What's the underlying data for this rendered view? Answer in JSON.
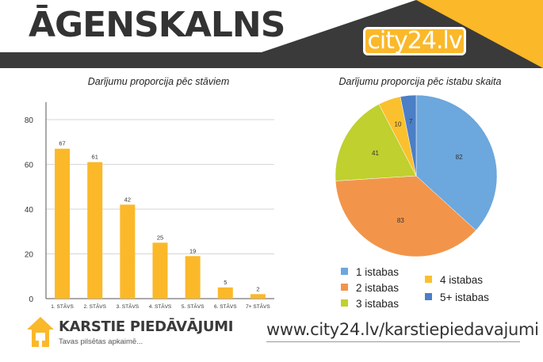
{
  "header": {
    "title": "ĀGENSKALNS",
    "brand": "city24.lv",
    "colors": {
      "dark": "#3a3a3a",
      "accent": "#fbb829"
    }
  },
  "chart_data": [
    {
      "type": "bar",
      "title": "Darījumu proporcija pēc stāviem",
      "categories": [
        "1. STĀVS",
        "2. STĀVS",
        "3. STĀVS",
        "4. STĀVS",
        "5. STĀVS",
        "6. STĀVS",
        "7+ STĀVS"
      ],
      "values": [
        67,
        61,
        42,
        25,
        19,
        5,
        2
      ],
      "ylim": [
        0,
        80
      ],
      "yticks": [
        0,
        20,
        40,
        60,
        80
      ],
      "grid": true,
      "color": "#fbb829"
    },
    {
      "type": "pie",
      "title": "Darījumu proporcija pēc istabu skaita",
      "series": [
        {
          "name": "1 istabas",
          "value": 82,
          "color": "#6ca7dd"
        },
        {
          "name": "2 istabas",
          "value": 83,
          "color": "#f2954a"
        },
        {
          "name": "3 istabas",
          "value": 41,
          "color": "#bfd02f"
        },
        {
          "name": "4 istabas",
          "value": 10,
          "color": "#fbc02d"
        },
        {
          "name": "5+ istabas",
          "value": 7,
          "color": "#4b7fc6"
        }
      ],
      "legend": "bottom"
    }
  ],
  "footer": {
    "logo_name": "KARSTIE PIEDĀVĀJUMI",
    "logo_tagline": "Tavas pilsētas apkaimē...",
    "url": "www.city24.lv/karstiepiedavajumi"
  }
}
